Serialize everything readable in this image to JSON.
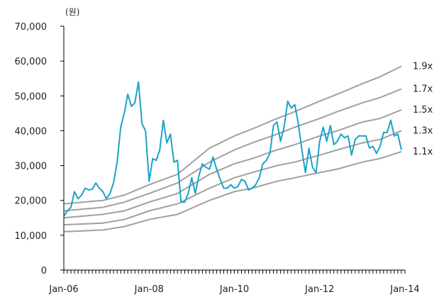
{
  "chart_data": {
    "type": "line",
    "unit_label": "(원)",
    "ylim": [
      0,
      70000
    ],
    "yticks": [
      {
        "value": 0,
        "label": "0"
      },
      {
        "value": 10000,
        "label": "10,000"
      },
      {
        "value": 20000,
        "label": "20,000"
      },
      {
        "value": 30000,
        "label": "30,000"
      },
      {
        "value": 40000,
        "label": "40,000"
      },
      {
        "value": 50000,
        "label": "50,000"
      },
      {
        "value": 60000,
        "label": "60,000"
      },
      {
        "value": 70000,
        "label": "70,000"
      }
    ],
    "xlim": [
      "2006-01",
      "2014-01"
    ],
    "xticks": [
      {
        "value": "2006-01",
        "label": "Jan-06"
      },
      {
        "value": "2008-01",
        "label": "Jan-08"
      },
      {
        "value": "2010-01",
        "label": "Jan-10"
      },
      {
        "value": "2012-01",
        "label": "Jan-12"
      },
      {
        "value": "2014-01",
        "label": "Jan-14"
      }
    ],
    "grid": false,
    "colors": {
      "price": "#1aa3c9",
      "bands": "#a0a0a0",
      "axis": "#000000"
    },
    "price_series": {
      "x": [
        "2006-01",
        "2006-02",
        "2006-03",
        "2006-04",
        "2006-05",
        "2006-06",
        "2006-07",
        "2006-08",
        "2006-09",
        "2006-10",
        "2006-11",
        "2006-12",
        "2007-01",
        "2007-02",
        "2007-03",
        "2007-04",
        "2007-05",
        "2007-06",
        "2007-07",
        "2007-08",
        "2007-09",
        "2007-10",
        "2007-11",
        "2007-12",
        "2008-01",
        "2008-02",
        "2008-03",
        "2008-04",
        "2008-05",
        "2008-06",
        "2008-07",
        "2008-08",
        "2008-09",
        "2008-10",
        "2008-11",
        "2008-12",
        "2009-01",
        "2009-02",
        "2009-03",
        "2009-04",
        "2009-05",
        "2009-06",
        "2009-07",
        "2009-08",
        "2009-09",
        "2009-10",
        "2009-11",
        "2009-12",
        "2010-01",
        "2010-02",
        "2010-03",
        "2010-04",
        "2010-05",
        "2010-06",
        "2010-07",
        "2010-08",
        "2010-09",
        "2010-10",
        "2010-11",
        "2010-12",
        "2011-01",
        "2011-02",
        "2011-03",
        "2011-04",
        "2011-05",
        "2011-06",
        "2011-07",
        "2011-08",
        "2011-09",
        "2011-10",
        "2011-11",
        "2011-12",
        "2012-01",
        "2012-02",
        "2012-03",
        "2012-04",
        "2012-05",
        "2012-06",
        "2012-07",
        "2012-08",
        "2012-09",
        "2012-10",
        "2012-11",
        "2012-12",
        "2013-01",
        "2013-02",
        "2013-03",
        "2013-04",
        "2013-05",
        "2013-06",
        "2013-07",
        "2013-08",
        "2013-09",
        "2013-10",
        "2013-11",
        "2013-12"
      ],
      "y": [
        15500,
        17000,
        18000,
        22500,
        20500,
        21500,
        23500,
        23000,
        23200,
        25000,
        23500,
        22500,
        20500,
        22000,
        25000,
        31000,
        41000,
        45000,
        50500,
        47000,
        48000,
        54000,
        42000,
        40000,
        25500,
        32000,
        31500,
        34500,
        43000,
        36500,
        39000,
        31000,
        31500,
        19500,
        19500,
        22000,
        26500,
        22000,
        27000,
        30500,
        29500,
        29000,
        32500,
        29000,
        26000,
        23500,
        23500,
        24500,
        23500,
        24000,
        26000,
        25500,
        23000,
        23500,
        24500,
        26500,
        30500,
        31500,
        33500,
        41500,
        42500,
        37000,
        41000,
        48500,
        46500,
        47500,
        42000,
        34500,
        28000,
        35000,
        29500,
        28000,
        37000,
        41000,
        37000,
        41500,
        36000,
        37000,
        39000,
        38000,
        38500,
        33000,
        37500,
        38500,
        38500,
        38500,
        35000,
        35500,
        33500,
        35500,
        39500,
        39500,
        43000,
        38500,
        39000,
        34500
      ]
    },
    "bands": [
      {
        "name": "1.9x",
        "x": [
          "2006-01",
          "2006-12",
          "2007-06",
          "2008-01",
          "2008-09",
          "2009-06",
          "2010-01",
          "2010-06",
          "2011-01",
          "2011-06",
          "2012-01",
          "2012-06",
          "2013-01",
          "2013-06",
          "2013-12"
        ],
        "y": [
          19000,
          20000,
          21500,
          24500,
          27500,
          35000,
          38500,
          40500,
          43500,
          45500,
          48500,
          50500,
          53500,
          55500,
          58500
        ]
      },
      {
        "name": "1.7x",
        "x": [
          "2006-01",
          "2006-12",
          "2007-06",
          "2008-01",
          "2008-09",
          "2009-06",
          "2010-01",
          "2010-06",
          "2011-01",
          "2011-06",
          "2012-01",
          "2012-06",
          "2013-01",
          "2013-06",
          "2013-12"
        ],
        "y": [
          17000,
          18000,
          19500,
          22000,
          25000,
          31000,
          34500,
          36500,
          39000,
          41000,
          43500,
          45500,
          48000,
          49500,
          52000
        ]
      },
      {
        "name": "1.5x",
        "x": [
          "2006-01",
          "2006-12",
          "2007-06",
          "2008-01",
          "2008-09",
          "2009-06",
          "2010-01",
          "2010-06",
          "2011-01",
          "2011-06",
          "2012-01",
          "2012-06",
          "2013-01",
          "2013-06",
          "2013-12"
        ],
        "y": [
          15000,
          16000,
          17000,
          19500,
          22000,
          27500,
          30500,
          32000,
          34500,
          36000,
          38500,
          40000,
          42500,
          43500,
          46000
        ]
      },
      {
        "name": "1.3x",
        "x": [
          "2006-01",
          "2006-12",
          "2007-06",
          "2008-01",
          "2008-09",
          "2009-06",
          "2010-01",
          "2010-06",
          "2011-01",
          "2011-06",
          "2012-01",
          "2012-06",
          "2013-01",
          "2013-06",
          "2013-12"
        ],
        "y": [
          13000,
          13500,
          14500,
          17000,
          19000,
          23500,
          26500,
          28000,
          30000,
          31000,
          33000,
          34500,
          36500,
          37500,
          40000
        ]
      },
      {
        "name": "1.1x",
        "x": [
          "2006-01",
          "2006-12",
          "2007-06",
          "2008-01",
          "2008-09",
          "2009-06",
          "2010-01",
          "2010-06",
          "2011-01",
          "2011-06",
          "2012-01",
          "2012-06",
          "2013-01",
          "2013-06",
          "2013-12"
        ],
        "y": [
          11000,
          11500,
          12500,
          14500,
          16000,
          20000,
          22500,
          23500,
          25500,
          26500,
          28000,
          29000,
          31000,
          32000,
          34000
        ]
      }
    ]
  }
}
